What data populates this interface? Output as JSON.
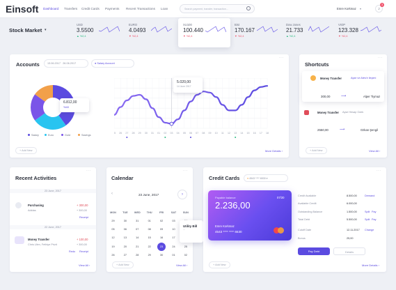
{
  "brand": {
    "logo": "Einsoft"
  },
  "nav": [
    {
      "label": "Dashboard"
    },
    {
      "label": "Transfers"
    },
    {
      "label": "Credit Cards"
    },
    {
      "label": "Payments"
    },
    {
      "label": "Recent Transactions"
    },
    {
      "label": "Loan"
    }
  ],
  "search": {
    "placeholder": "Search payment, transfer, transaction..."
  },
  "user": {
    "name": "Emre Korkmaz",
    "notifications": "3"
  },
  "market": {
    "title": "Stock Market",
    "tickers": [
      {
        "name": "USD",
        "value": "3.5500",
        "change": "%2,4",
        "up": true
      },
      {
        "name": "EURO",
        "value": "4.0493",
        "change": "%2,4",
        "up": false
      },
      {
        "name": "XU100",
        "value": "100.440",
        "change": "%2,4",
        "up": false
      },
      {
        "name": "Bist",
        "value": "170.167",
        "change": "%2,4",
        "up": false
      },
      {
        "name": "Dow Jones",
        "value": "21.733",
        "change": "%2,4",
        "up": true
      },
      {
        "name": "VIOP",
        "value": "123.328",
        "change": "%2,4",
        "up": false
      }
    ]
  },
  "accounts": {
    "title": "Accounts",
    "date_from": "13.06.2017",
    "date_to": "26.06.2017",
    "account_select": "Salary Account",
    "pie_value": "6.812,00",
    "pie_pct": "%40",
    "chart_value": "5.020,00",
    "chart_date": "14 June 2017",
    "add_label": "Add New",
    "more_label": "More Details",
    "legend": [
      {
        "name": "Salary",
        "color": "#5b4be0"
      },
      {
        "name": "Euro",
        "color": "#29c4f0"
      },
      {
        "name": "Gold",
        "color": "#7a55e8"
      },
      {
        "name": "Savings",
        "color": "#f2a04a"
      }
    ],
    "x_ticks": [
      "25",
      "26",
      "27",
      "28",
      "29",
      "30",
      "31",
      "01",
      "02",
      "03",
      "04",
      "05",
      "06",
      "07",
      "08",
      "09",
      "10",
      "11",
      "12",
      "13",
      "14",
      "15",
      "16",
      "17",
      "18"
    ]
  },
  "shortcuts": {
    "title": "Shortcuts",
    "items": [
      {
        "label": "Money Transfer",
        "note": "Ayse ve Ates'e ileçimi",
        "amount": "300,00",
        "to": "Alper Tiymaz"
      },
      {
        "label": "Money Transfer",
        "note": "Ayse Hesap Ozek",
        "amount": "2550,00",
        "to": "Ozkan Şengil"
      }
    ],
    "add_label": "Add New",
    "more_label": "View All"
  },
  "recent": {
    "title": "Recent Activities",
    "groups": [
      {
        "date": "23 June, 2017",
        "title": "Purchasing",
        "sub": "Adidas",
        "amount": "+ 300,00",
        "sub2": "+ 300,00",
        "action": "Receipt"
      },
      {
        "date": "22 June, 2017",
        "title": "Money Transfer",
        "sub": "Chris Ulen, Fethiye Prizit",
        "amount": "+ 100,00",
        "sub2": "+ 300,00",
        "actions": [
          "Redo",
          "Receipt"
        ]
      }
    ],
    "more_label": "View All"
  },
  "calendar": {
    "title": "Calendar",
    "current": "23 June, 2017",
    "days": [
      "MON",
      "TUE",
      "WED",
      "THU",
      "FRI",
      "SAT",
      "SUN"
    ],
    "weeks": [
      [
        "29",
        "30",
        "31",
        "01",
        "02",
        "03",
        "04"
      ],
      [
        "05",
        "06",
        "07",
        "08",
        "09",
        "10",
        "11"
      ],
      [
        "12",
        "13",
        "14",
        "15",
        "16",
        "17",
        "18"
      ],
      [
        "19",
        "20",
        "21",
        "22",
        "23",
        "24",
        "25"
      ],
      [
        "26",
        "27",
        "28",
        "29",
        "30",
        "01",
        "02"
      ]
    ],
    "selected": "23",
    "event": "Utility Bill",
    "event_sub": "...",
    "add_label": "Add New",
    "more_label": "View All"
  },
  "cards": {
    "title": "Credit Cards",
    "selected": "4543 **** 6530",
    "balance_label": "Payable balance",
    "balance": "2.236,00",
    "expiry": "07/20",
    "holder": "Emre Korkmaz",
    "number": "4543 **** **** 6530",
    "pay_label": "Pay Debt",
    "detail_label": "Details",
    "rows": [
      {
        "label": "Credit Available",
        "value": "8.500,00",
        "links": [
          "Demand"
        ]
      },
      {
        "label": "Available Credit",
        "value": "6.000,00",
        "links": []
      },
      {
        "label": "Outstanding Balance",
        "value": "1.500,00",
        "links": [
          "Split",
          "Pay"
        ]
      },
      {
        "label": "Total Debt",
        "value": "5.500,00",
        "links": [
          "Split",
          "Pay"
        ]
      },
      {
        "label": "Cutoff Date",
        "value": "12.11.2017",
        "links": [
          "Change"
        ]
      },
      {
        "label": "Bonus",
        "value": "25,00",
        "links": []
      }
    ],
    "add_label": "Add New",
    "more_label": "More Details"
  },
  "colors": {
    "accent": "#5b4be0",
    "up": "#2dbb82",
    "down": "#f0526b"
  },
  "chart_data": {
    "type": "line",
    "x": [
      "25",
      "26",
      "27",
      "28",
      "29",
      "30",
      "31",
      "01",
      "02",
      "03",
      "04",
      "05",
      "06",
      "07",
      "08",
      "09",
      "10",
      "11",
      "12",
      "13",
      "14",
      "15",
      "16",
      "17",
      "18"
    ],
    "series": [
      {
        "values": [
          3.2,
          3.9,
          4.5,
          4.9,
          5.0,
          4.6,
          3.8,
          3.0,
          2.5,
          2.4,
          2.8,
          3.6,
          4.4,
          5.0,
          5.3,
          5.2,
          4.8,
          4.1,
          3.6,
          3.6,
          4.1,
          4.8,
          5.4,
          5.7,
          5.8
        ]
      }
    ],
    "pie": {
      "values": [
        40,
        25,
        20,
        15
      ],
      "labels": [
        "Salary",
        "Euro",
        "Gold",
        "Savings"
      ]
    }
  }
}
